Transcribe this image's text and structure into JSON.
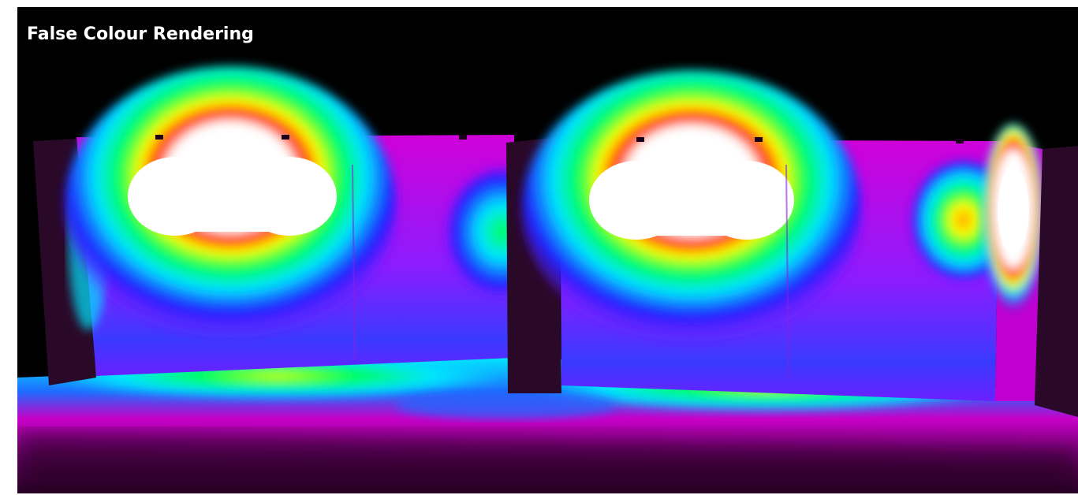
{
  "header": {
    "title": "False Colour Rendering"
  },
  "colors": {
    "background": "#000000",
    "title_text": "#ffffff",
    "page": "#ffffff"
  },
  "render": {
    "mode": "false-colour",
    "palette": [
      "#5b0045",
      "#c800c8",
      "#1e1eff",
      "#00e6ff",
      "#00ff5a",
      "#ffff00",
      "#ff2a00",
      "#ffffff"
    ]
  }
}
